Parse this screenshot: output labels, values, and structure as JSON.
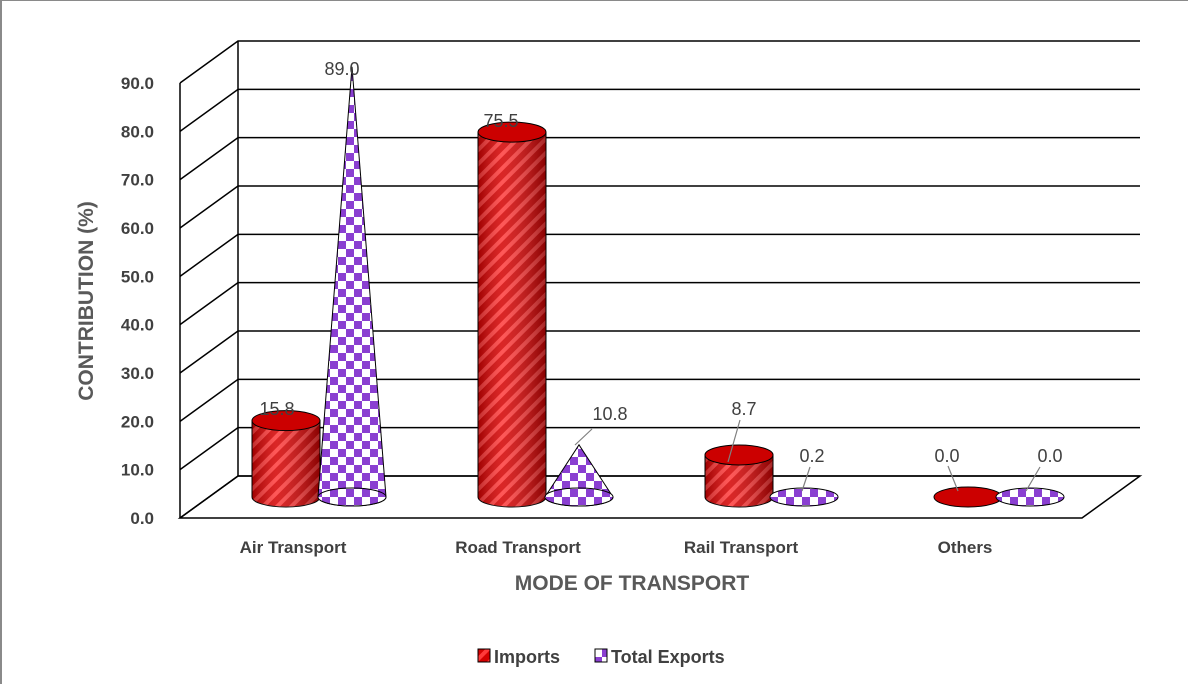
{
  "chart_data": {
    "type": "bar",
    "style": "3d-cylinder-cone",
    "categories": [
      "Air Transport",
      "Road Transport",
      "Rail Transport",
      "Others"
    ],
    "series": [
      {
        "name": "Imports",
        "values": [
          15.8,
          75.5,
          8.7,
          0.0
        ],
        "labels": [
          "15.8",
          "75.5",
          "8.7",
          "0.0"
        ],
        "shape": "cylinder",
        "color": "#e60000"
      },
      {
        "name": "Total Exports",
        "values": [
          89.0,
          10.8,
          0.2,
          0.0
        ],
        "labels": [
          "89.0",
          "10.8",
          "0.2",
          "0.0"
        ],
        "shape": "cone",
        "color": "#8a3fd1"
      }
    ],
    "title": "",
    "xlabel": "MODE OF TRANSPORT",
    "ylabel": "CONTRIBUTION (%)",
    "ylim": [
      0,
      90
    ],
    "yticks": [
      "0.0",
      "10.0",
      "20.0",
      "30.0",
      "40.0",
      "50.0",
      "60.0",
      "70.0",
      "80.0",
      "90.0"
    ],
    "grid": true,
    "legend_position": "bottom"
  }
}
